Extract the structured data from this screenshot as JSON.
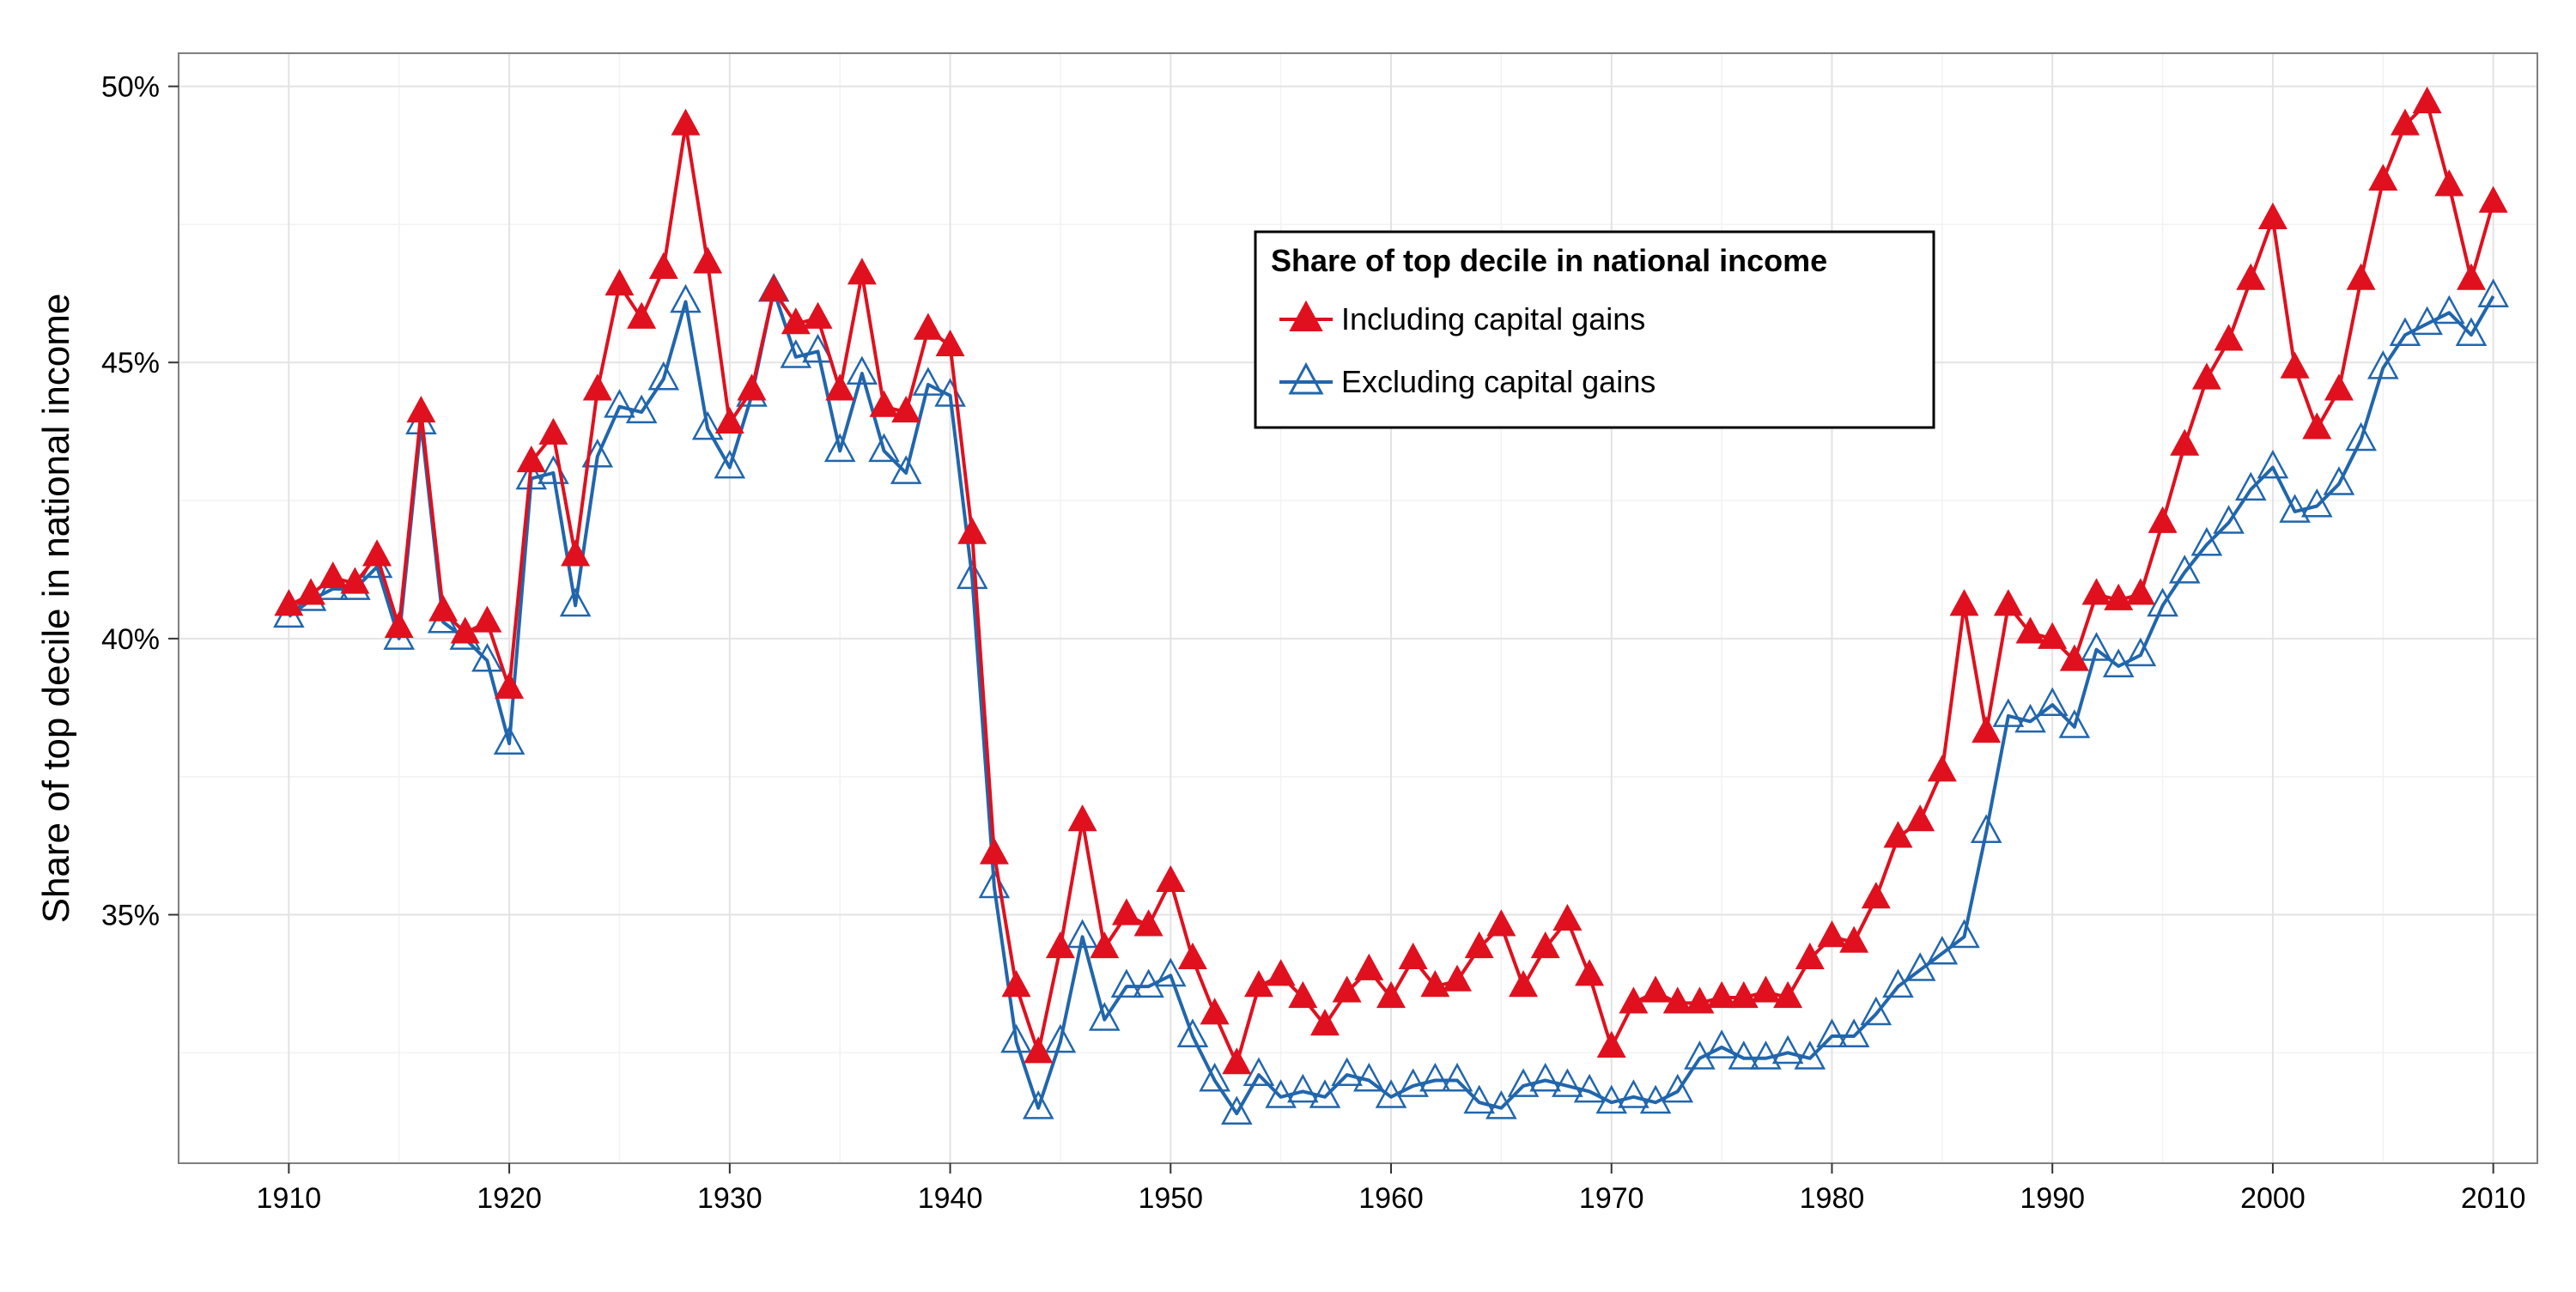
{
  "chart_data": {
    "type": "line",
    "title": "",
    "xlabel": "",
    "ylabel": "Share of top decile in national income",
    "xlim": [
      1905,
      2012
    ],
    "ylim": [
      30.5,
      50.6
    ],
    "x_ticks": [
      1910,
      1920,
      1930,
      1940,
      1950,
      1960,
      1970,
      1980,
      1990,
      2000,
      2010
    ],
    "x_tick_labels": [
      "1910",
      "1920",
      "1930",
      "1940",
      "1950",
      "1960",
      "1970",
      "1980",
      "1990",
      "2000",
      "2010"
    ],
    "y_ticks": [
      35,
      40,
      45,
      50
    ],
    "y_tick_labels": [
      "35%",
      "40%",
      "45%",
      "50%"
    ],
    "grid": true,
    "legend": {
      "title": "Share of top decile in national income",
      "placement": "top-center"
    },
    "x": [
      1910,
      1911,
      1912,
      1913,
      1914,
      1915,
      1916,
      1917,
      1918,
      1919,
      1920,
      1921,
      1922,
      1923,
      1924,
      1925,
      1926,
      1927,
      1928,
      1929,
      1930,
      1931,
      1932,
      1933,
      1934,
      1935,
      1936,
      1937,
      1938,
      1939,
      1940,
      1941,
      1942,
      1943,
      1944,
      1945,
      1946,
      1947,
      1948,
      1949,
      1950,
      1951,
      1952,
      1953,
      1954,
      1955,
      1956,
      1957,
      1958,
      1959,
      1960,
      1961,
      1962,
      1963,
      1964,
      1965,
      1966,
      1967,
      1968,
      1969,
      1970,
      1971,
      1972,
      1973,
      1974,
      1975,
      1976,
      1977,
      1978,
      1979,
      1980,
      1981,
      1982,
      1983,
      1984,
      1985,
      1986,
      1987,
      1988,
      1989,
      1990,
      1991,
      1992,
      1993,
      1994,
      1995,
      1996,
      1997,
      1998,
      1999,
      2000,
      2001,
      2002,
      2003,
      2004,
      2005,
      2006,
      2007,
      2008,
      2009,
      2010
    ],
    "series": [
      {
        "name": "Including capital gains",
        "color": "#e0101e",
        "marker": "filled-triangle",
        "values": [
          40.6,
          40.8,
          41.1,
          41.0,
          41.5,
          40.2,
          44.1,
          40.5,
          40.1,
          40.3,
          39.1,
          43.2,
          43.7,
          41.5,
          44.5,
          46.4,
          45.8,
          46.7,
          49.3,
          46.8,
          43.9,
          44.5,
          46.3,
          45.7,
          45.8,
          44.5,
          46.6,
          44.2,
          44.1,
          45.6,
          45.3,
          41.9,
          36.1,
          33.7,
          32.5,
          34.4,
          36.7,
          34.4,
          35.0,
          34.8,
          35.6,
          34.2,
          33.2,
          32.3,
          33.7,
          33.9,
          33.5,
          33.0,
          33.6,
          34.0,
          33.5,
          34.2,
          33.7,
          33.8,
          34.4,
          34.8,
          33.7,
          34.4,
          34.9,
          33.9,
          32.6,
          33.4,
          33.6,
          33.4,
          33.4,
          33.5,
          33.5,
          33.6,
          33.5,
          34.2,
          34.6,
          34.5,
          35.3,
          36.4,
          36.7,
          37.6,
          40.6,
          38.3,
          40.6,
          40.1,
          40.0,
          39.6,
          40.8,
          40.7,
          40.8,
          42.1,
          43.5,
          44.7,
          45.4,
          46.5,
          47.6,
          44.9,
          43.8,
          44.5,
          46.5,
          48.3,
          49.3,
          49.7,
          48.2,
          46.5,
          47.9
        ]
      },
      {
        "name": "Excluding capital gains",
        "color": "#2166ac",
        "marker": "open-triangle",
        "values": [
          40.4,
          40.7,
          40.9,
          40.9,
          41.3,
          40.0,
          43.9,
          40.3,
          40.0,
          39.6,
          38.1,
          42.9,
          43.0,
          40.6,
          43.3,
          44.2,
          44.1,
          44.7,
          46.1,
          43.8,
          43.1,
          44.4,
          46.3,
          45.1,
          45.2,
          43.4,
          44.8,
          43.4,
          43.0,
          44.6,
          44.4,
          41.1,
          35.5,
          32.7,
          31.5,
          32.7,
          34.6,
          33.1,
          33.7,
          33.7,
          33.9,
          32.8,
          32.0,
          31.4,
          32.1,
          31.7,
          31.8,
          31.7,
          32.1,
          32.0,
          31.7,
          31.9,
          32.0,
          32.0,
          31.6,
          31.5,
          31.9,
          32.0,
          31.9,
          31.8,
          31.6,
          31.7,
          31.6,
          31.8,
          32.4,
          32.6,
          32.4,
          32.4,
          32.5,
          32.4,
          32.8,
          32.8,
          33.2,
          33.7,
          34.0,
          34.3,
          34.6,
          36.5,
          38.6,
          38.5,
          38.8,
          38.4,
          39.8,
          39.5,
          39.7,
          40.6,
          41.2,
          41.7,
          42.1,
          42.7,
          43.1,
          42.3,
          42.4,
          42.8,
          43.6,
          44.9,
          45.5,
          45.7,
          45.9,
          45.5,
          46.2
        ]
      }
    ]
  }
}
